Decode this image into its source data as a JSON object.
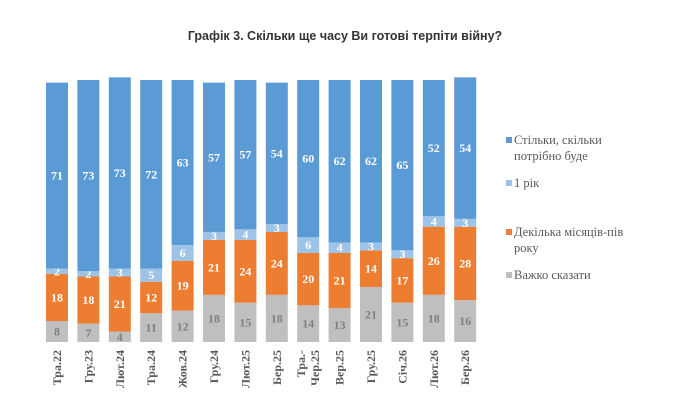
{
  "chart_data": {
    "type": "bar",
    "stacked": true,
    "title": "Графік 3. Скільки ще часу Ви готові терпіти війну?",
    "categories": [
      "Тра.22",
      "Гру.23",
      "Лют.24",
      "Тра.24",
      "Жов.24",
      "Гру.24",
      "Лют.25",
      "Бер.25",
      "Тра.-Чер.25",
      "Вер.25",
      "Гру.25",
      "Січ.26",
      "Лют.26",
      "Бер.26"
    ],
    "series": [
      {
        "name": "Важко сказати",
        "color": "#bfbfbf",
        "label_color": "#7f7f7f",
        "values": [
          8,
          7,
          4,
          11,
          12,
          18,
          15,
          18,
          14,
          13,
          21,
          15,
          18,
          16
        ]
      },
      {
        "name": "Декілька місяців-пів року",
        "color": "#ed7d31",
        "label_color": "#ffffff",
        "values": [
          18,
          18,
          21,
          12,
          19,
          21,
          24,
          24,
          20,
          21,
          14,
          17,
          26,
          28
        ]
      },
      {
        "name": "1 рік",
        "color": "#9dc3e6",
        "label_color": "#ffffff",
        "values": [
          2,
          2,
          3,
          5,
          6,
          3,
          4,
          3,
          6,
          4,
          3,
          3,
          4,
          3
        ]
      },
      {
        "name": "Стільки, скільки потрібно буде",
        "color": "#5b9bd5",
        "label_color": "#ffffff",
        "values": [
          71,
          73,
          73,
          72,
          63,
          57,
          57,
          54,
          60,
          62,
          62,
          65,
          52,
          54
        ]
      }
    ],
    "legend": {
      "placement": "right",
      "order": [
        "Стільки, скільки потрібно буде",
        "1 рік",
        "Декілька місяців-пів року",
        "Важко сказати"
      ]
    },
    "ylim": [
      0,
      100
    ],
    "xlabel": "",
    "ylabel": "",
    "grid": false
  }
}
